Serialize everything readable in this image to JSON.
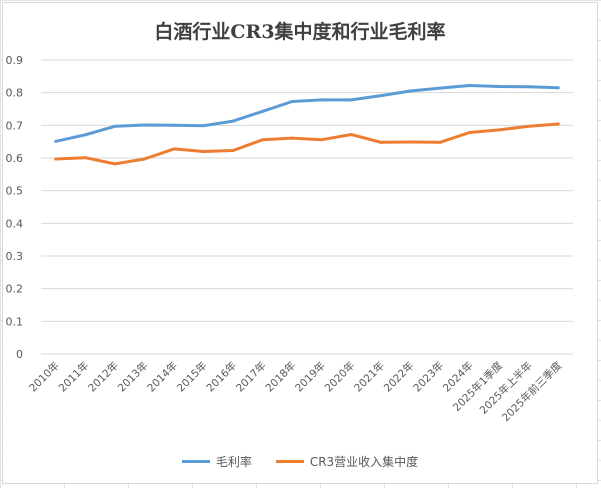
{
  "chart_data": {
    "type": "line",
    "title": "白酒行业CR3集中度和行业毛利率",
    "categories": [
      "2010年",
      "2011年",
      "2012年",
      "2013年",
      "2014年",
      "2015年",
      "2016年",
      "2017年",
      "2018年",
      "2019年",
      "2020年",
      "2021年",
      "2022年",
      "2023年",
      "2024年",
      "2025年1季度",
      "2025年上半年",
      "2025年前三季度"
    ],
    "ylim": [
      0,
      0.9
    ],
    "yticks": [
      "0",
      "0.1",
      "0.2",
      "0.3",
      "0.4",
      "0.5",
      "0.6",
      "0.7",
      "0.8",
      "0.9"
    ],
    "grid": true,
    "legend_position": "bottom",
    "series": [
      {
        "name": "毛利率",
        "color": "#5b9bd5",
        "values": [
          0.651,
          0.671,
          0.697,
          0.701,
          0.7,
          0.699,
          0.713,
          0.743,
          0.773,
          0.778,
          0.778,
          0.791,
          0.805,
          0.814,
          0.822,
          0.819,
          0.818,
          0.815
        ]
      },
      {
        "name": "CR3营业收入集中度",
        "color": "#ed7d31",
        "values": [
          0.597,
          0.601,
          0.582,
          0.597,
          0.628,
          0.62,
          0.623,
          0.656,
          0.661,
          0.656,
          0.672,
          0.648,
          0.649,
          0.648,
          0.678,
          0.686,
          0.697,
          0.704
        ]
      }
    ]
  }
}
